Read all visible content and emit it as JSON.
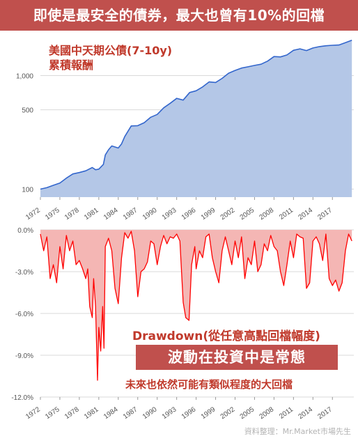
{
  "title": "即使是最安全的債券，最大也曾有10%的回檔",
  "chart_data": [
    {
      "type": "area",
      "title_lines": [
        "美國中天期公債(7-10y)",
        "累積報酬"
      ],
      "yscale": "log",
      "ylim": [
        85,
        2100
      ],
      "yticks": [
        100,
        500,
        1000
      ],
      "ytick_labels": [
        "100",
        "500",
        "1,000"
      ],
      "xlim": [
        1972,
        2020.3
      ],
      "xticks": [
        "1972",
        "1975",
        "1978",
        "1981",
        "1984",
        "1987",
        "1990",
        "1993",
        "1996",
        "1999",
        "2002",
        "2005",
        "2008",
        "2011",
        "2014",
        "2017"
      ],
      "grid": true,
      "series": [
        {
          "x": [
            1972,
            1973,
            1974,
            1975,
            1976,
            1977,
            1978,
            1979,
            1980,
            1980.5,
            1981,
            1981.7,
            1982,
            1982.5,
            1983,
            1984,
            1984.5,
            1985,
            1986,
            1987,
            1988,
            1989,
            1990,
            1991,
            1992,
            1993,
            1994,
            1995,
            1996,
            1997,
            1998,
            1999,
            2000,
            2001,
            2002,
            2003,
            2004,
            2005,
            2006,
            2007,
            2008,
            2009,
            2010,
            2011,
            2012,
            2013,
            2014,
            2015,
            2016,
            2017,
            2018,
            2019,
            2020
          ],
          "values": [
            100,
            103,
            108,
            113,
            125,
            136,
            140,
            145,
            155,
            148,
            150,
            165,
            200,
            222,
            240,
            230,
            250,
            290,
            360,
            362,
            385,
            430,
            455,
            520,
            570,
            630,
            608,
            710,
            735,
            795,
            880,
            870,
            945,
            1050,
            1110,
            1165,
            1195,
            1230,
            1260,
            1340,
            1470,
            1460,
            1520,
            1670,
            1720,
            1660,
            1750,
            1800,
            1830,
            1850,
            1860,
            1950,
            2050
          ],
          "color": "#3366cc",
          "fill": "#b4c7e7"
        }
      ]
    },
    {
      "type": "area",
      "title": "Drawdown(從任意高點回檔幅度)",
      "ylim": [
        -12,
        0
      ],
      "yticks": [
        0,
        -3,
        -6,
        -9,
        -12
      ],
      "ytick_labels": [
        "0.0%",
        "-3.0%",
        "-6.0%",
        "-9.0%",
        "-12.0%"
      ],
      "xlim": [
        1972,
        2020.3
      ],
      "xticks": [
        "1972",
        "1975",
        "1978",
        "1981",
        "1984",
        "1987",
        "1990",
        "1993",
        "1996",
        "1999",
        "2002",
        "2005",
        "2008",
        "2011",
        "2014",
        "2017"
      ],
      "grid": true,
      "series": [
        {
          "x": [
            1972,
            1972.5,
            1973,
            1973.5,
            1974,
            1974.5,
            1975,
            1975.5,
            1976,
            1976.5,
            1977,
            1977.5,
            1978,
            1978.5,
            1979,
            1979.3,
            1979.6,
            1980,
            1980.2,
            1980.5,
            1980.8,
            1981,
            1981.3,
            1981.6,
            1981.8,
            1982,
            1982.5,
            1983,
            1983.5,
            1984,
            1984.5,
            1985,
            1985.5,
            1986,
            1986.5,
            1987,
            1987.5,
            1988,
            1988.5,
            1989,
            1989.5,
            1990,
            1990.5,
            1991,
            1991.5,
            1992,
            1992.5,
            1993,
            1993.5,
            1994,
            1994.4,
            1994.9,
            1995.3,
            1995.8,
            1996,
            1996.5,
            1997,
            1997.5,
            1998,
            1998.5,
            1999,
            1999.5,
            2000,
            2000.5,
            2001,
            2001.5,
            2002,
            2002.5,
            2003,
            2003.5,
            2004,
            2004.5,
            2005,
            2005.5,
            2006,
            2006.5,
            2007,
            2007.5,
            2008,
            2008.5,
            2009,
            2009.5,
            2010,
            2010.5,
            2011,
            2011.5,
            2012,
            2012.5,
            2013,
            2013.5,
            2014,
            2014.5,
            2015,
            2015.5,
            2016,
            2016.5,
            2017,
            2017.5,
            2018,
            2018.5,
            2019,
            2019.5,
            2020
          ],
          "values": [
            -0.3,
            -1.5,
            -0.5,
            -3.5,
            -2.5,
            -3.8,
            -1.2,
            -2.8,
            -0.4,
            -1.5,
            -0.8,
            -2.5,
            -2.2,
            -2.8,
            -3.5,
            -2.8,
            -5.5,
            -6.3,
            -3.5,
            -5.5,
            -10.8,
            -7,
            -8.7,
            -5.5,
            -8.5,
            -1.2,
            -0.6,
            -1.5,
            -4.2,
            -5.3,
            -2,
            -0.2,
            -0.6,
            -0.1,
            -1.5,
            -4.8,
            -3,
            -2.8,
            -2.3,
            -0.8,
            -1,
            -2.5,
            -1.2,
            -0.4,
            -1,
            -0.5,
            -0.6,
            -0.3,
            -0.8,
            -5.2,
            -6.3,
            -6.5,
            -2.5,
            -1.2,
            -2.8,
            -1.5,
            -2,
            -0.5,
            -0.3,
            -2,
            -3,
            -3.8,
            -1.5,
            -0.5,
            -1.5,
            -2.5,
            -0.8,
            -2,
            -0.5,
            -3.5,
            -2,
            -2.5,
            -0.8,
            -3,
            -2.5,
            -1,
            -1.5,
            -0.4,
            -1.2,
            -1.5,
            -3,
            -4,
            -2.5,
            -0.8,
            -2,
            -0.3,
            -0.5,
            -0.6,
            -4.2,
            -3.8,
            -0.8,
            -0.5,
            -1,
            -2.2,
            -0.3,
            -3.5,
            -4,
            -3.6,
            -4.4,
            -3.8,
            -1.5,
            -0.3,
            -0.8
          ],
          "color": "#ff0000",
          "fill": "#f4b6b4"
        }
      ]
    }
  ],
  "banner": "波動在投資中是常態",
  "footnote": "未來也依然可能有類似程度的大回檔",
  "source": "資料整理：Mr.Market市場先生"
}
